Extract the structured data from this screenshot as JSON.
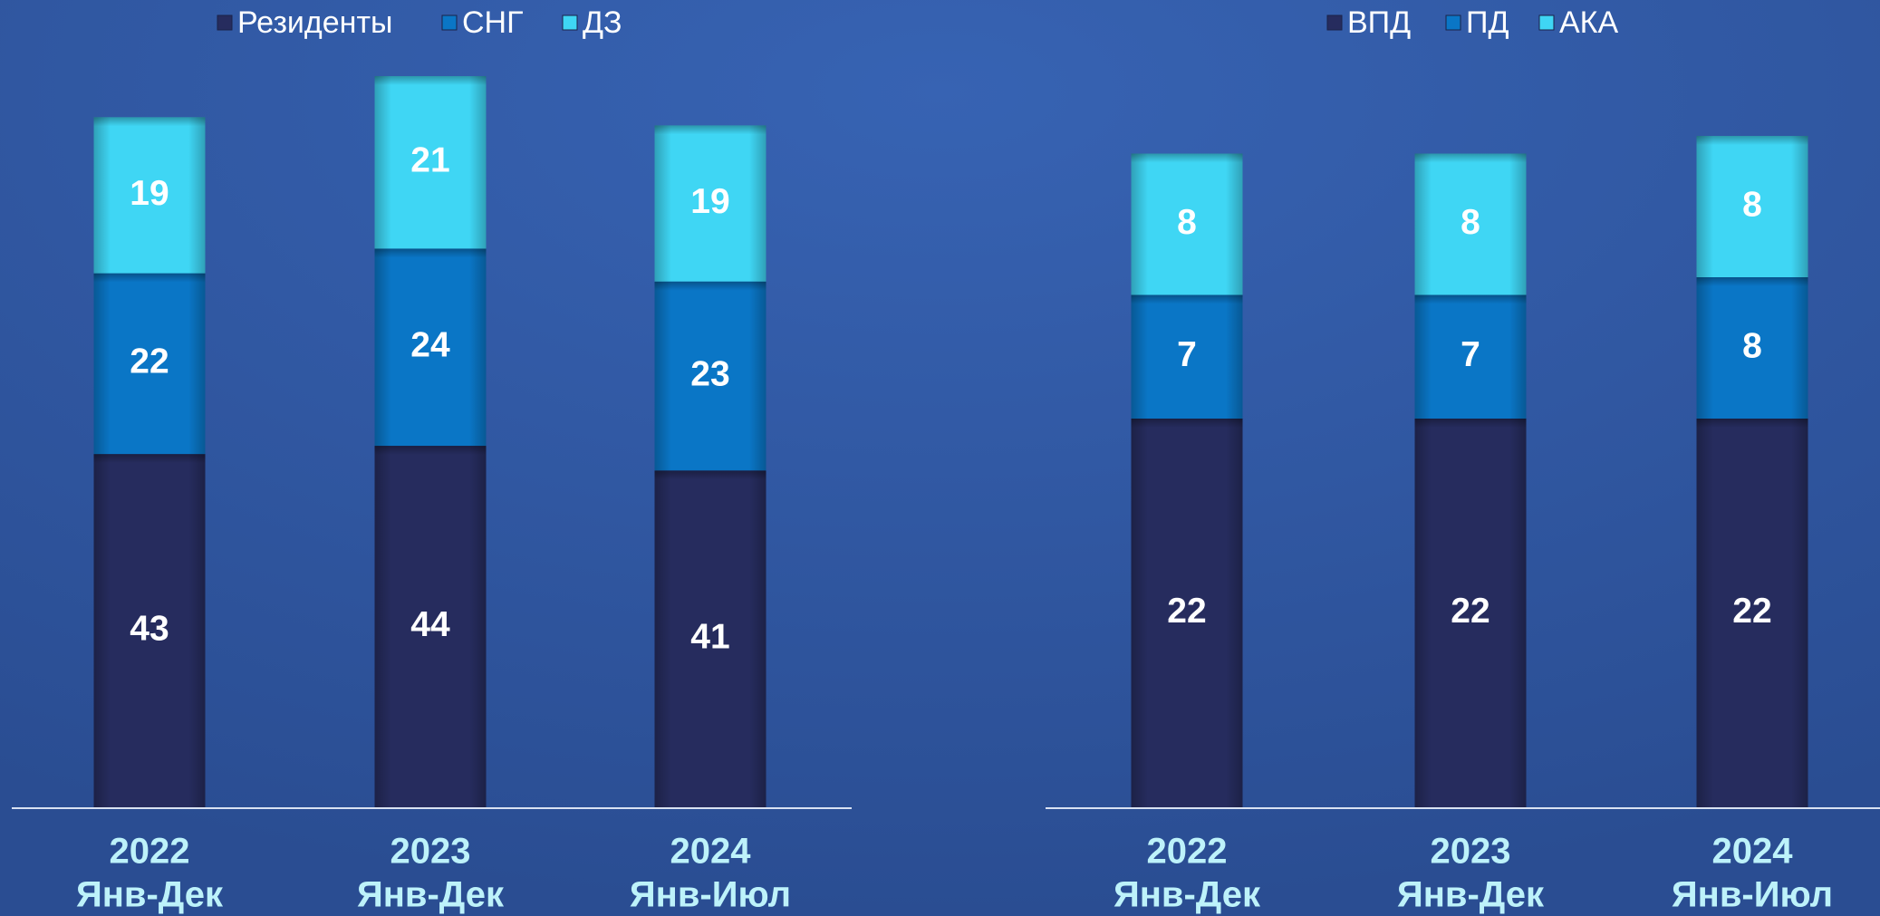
{
  "chart_data": [
    {
      "type": "bar",
      "stacked": true,
      "categories": [
        [
          "2022",
          "Янв-Дек"
        ],
        [
          "2023",
          "Янв-Дек"
        ],
        [
          "2024",
          "Янв-Июл"
        ]
      ],
      "series": [
        {
          "name": "Резиденты",
          "color": "#262c5e",
          "values": [
            43,
            44,
            41
          ]
        },
        {
          "name": "СНГ",
          "color": "#0a76c6",
          "values": [
            22,
            24,
            23
          ]
        },
        {
          "name": "ДЗ",
          "color": "#3fd6f4",
          "values": [
            19,
            21,
            19
          ]
        }
      ]
    },
    {
      "type": "bar",
      "stacked": true,
      "categories": [
        [
          "2022",
          "Янв-Дек"
        ],
        [
          "2023",
          "Янв-Дек"
        ],
        [
          "2024",
          "Янв-Июл"
        ]
      ],
      "series": [
        {
          "name": "ВПД",
          "color": "#262c5e",
          "values": [
            22,
            22,
            22
          ]
        },
        {
          "name": "ПД",
          "color": "#0a76c6",
          "values": [
            7,
            7,
            8
          ]
        },
        {
          "name": "АКА",
          "color": "#3fd6f4",
          "values": [
            8,
            8,
            8
          ]
        }
      ]
    }
  ]
}
